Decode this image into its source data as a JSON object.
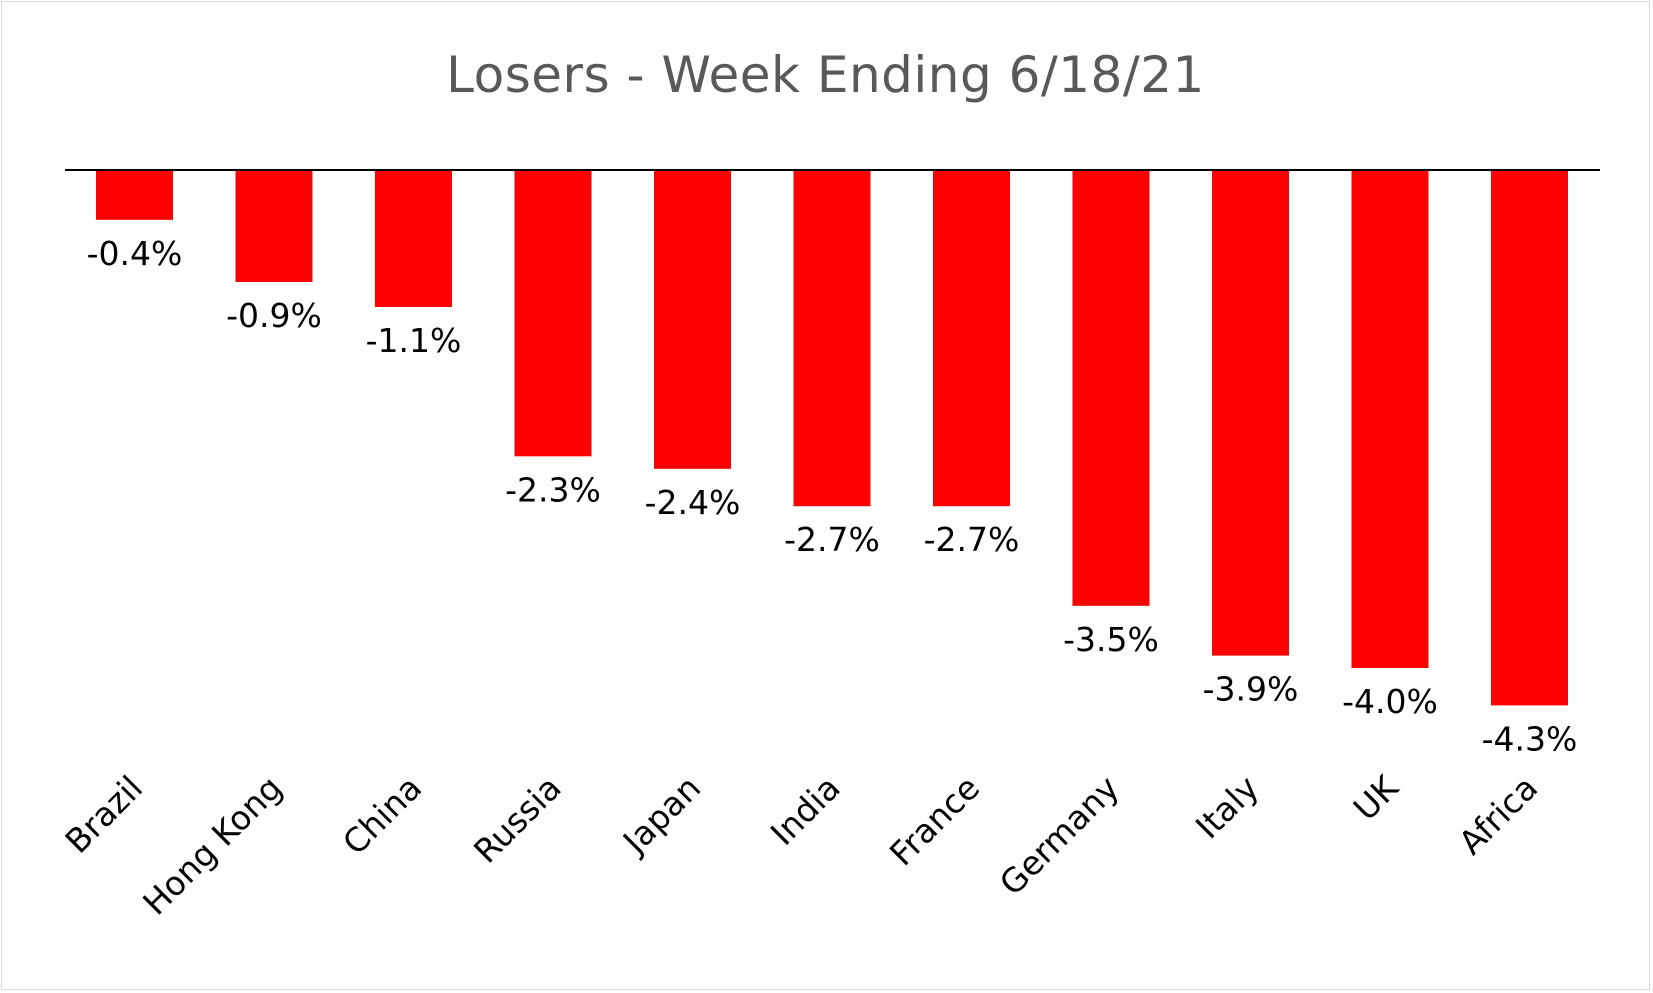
{
  "chart_data": {
    "type": "bar",
    "title": "Losers - Week Ending 6/18/21",
    "categories": [
      "Brazil",
      "Hong Kong",
      "China",
      "Russia",
      "Japan",
      "India",
      "France",
      "Germany",
      "Italy",
      "UK",
      "Africa"
    ],
    "values": [
      -0.4,
      -0.9,
      -1.1,
      -2.3,
      -2.4,
      -2.7,
      -2.7,
      -3.5,
      -3.9,
      -4.0,
      -4.3
    ],
    "data_labels": [
      "-0.4%",
      "-0.9%",
      "-1.1%",
      "-2.3%",
      "-2.4%",
      "-2.7%",
      "-2.7%",
      "-3.5%",
      "-3.9%",
      "-4.0%",
      "-4.3%"
    ],
    "bar_color": "#ff0000",
    "grid": false,
    "legend": "none"
  }
}
